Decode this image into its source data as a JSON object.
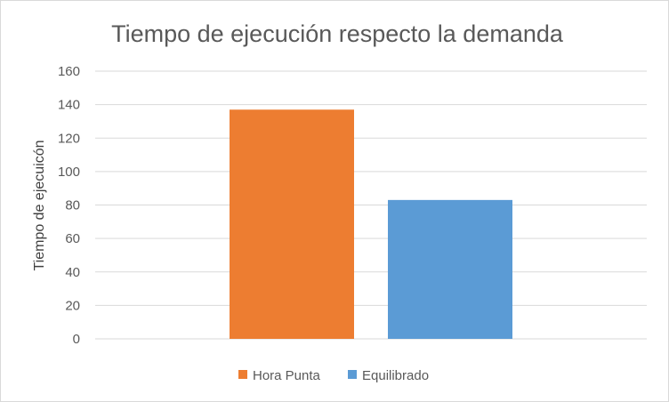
{
  "chart_data": {
    "type": "bar",
    "title": "Tiempo de ejecución respecto la demanda",
    "xlabel": "",
    "ylabel": "Tiempo de ejecuicón",
    "ylim": [
      0,
      160
    ],
    "yticks": [
      0,
      20,
      40,
      60,
      80,
      100,
      120,
      140,
      160
    ],
    "grid": true,
    "legend": "bottom",
    "categories": [
      ""
    ],
    "series": [
      {
        "name": "Hora Punta",
        "values": [
          137
        ],
        "color": "#ED7D31"
      },
      {
        "name": "Equilibrado",
        "values": [
          83
        ],
        "color": "#5B9BD5"
      }
    ]
  }
}
